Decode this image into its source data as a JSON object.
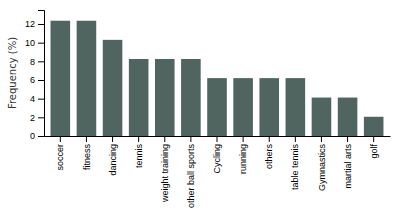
{
  "chart_data": {
    "type": "bar",
    "categories": [
      "soccer",
      "fitness",
      "dancing",
      "tennis",
      "weight training",
      "other ball sports",
      "Cycling",
      "running",
      "others",
      "table tennis",
      "Gymnastics",
      "martial arts",
      "golf"
    ],
    "values": [
      12.35,
      12.35,
      10.3,
      8.25,
      8.25,
      8.25,
      6.2,
      6.2,
      6.2,
      6.2,
      4.12,
      4.12,
      2.06
    ],
    "color": "#506560",
    "ylabel": "Frequency (%)",
    "ylim": [
      0,
      13.5
    ],
    "yticks": [
      0,
      2,
      4,
      6,
      8,
      10,
      12
    ],
    "grid": false
  }
}
